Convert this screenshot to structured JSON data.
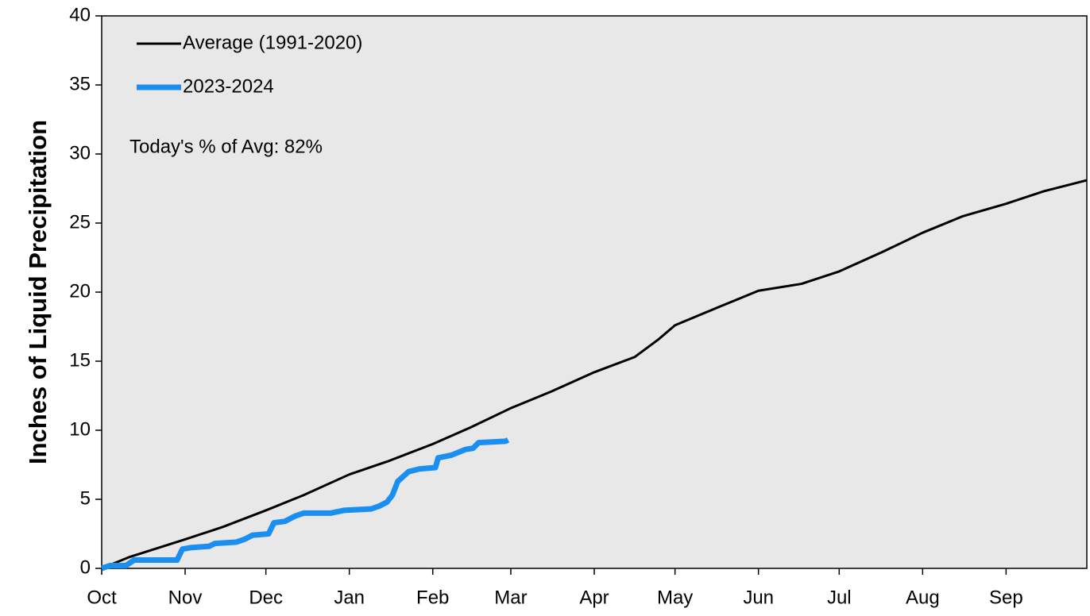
{
  "chart_data": {
    "type": "line",
    "y_label": "Inches of Liquid Precipitation",
    "annotation": "Today's % of Avg: 82%",
    "xlim": [
      0,
      366
    ],
    "xticks": [
      {
        "value": 0,
        "label": "Oct"
      },
      {
        "value": 31,
        "label": "Nov"
      },
      {
        "value": 61,
        "label": "Dec"
      },
      {
        "value": 92,
        "label": "Jan"
      },
      {
        "value": 123,
        "label": "Feb"
      },
      {
        "value": 152,
        "label": "Mar"
      },
      {
        "value": 183,
        "label": "Apr"
      },
      {
        "value": 213,
        "label": "May"
      },
      {
        "value": 244,
        "label": "Jun"
      },
      {
        "value": 274,
        "label": "Jul"
      },
      {
        "value": 305,
        "label": "Aug"
      },
      {
        "value": 336,
        "label": "Sep"
      }
    ],
    "ylim": [
      0,
      40
    ],
    "yticks": [
      0,
      5,
      10,
      15,
      20,
      25,
      30,
      35,
      40
    ],
    "grid": false,
    "series": [
      {
        "name": "Average (1991-2020)",
        "color": "#000000",
        "x": [
          0,
          10,
          31,
          45,
          61,
          75,
          92,
          107,
          123,
          137,
          152,
          167,
          183,
          198,
          207,
          213,
          229,
          244,
          260,
          274,
          290,
          305,
          320,
          336,
          350,
          366
        ],
        "values": [
          0,
          0.8,
          2.1,
          3.0,
          4.2,
          5.3,
          6.8,
          7.8,
          9.0,
          10.2,
          11.6,
          12.8,
          14.2,
          15.3,
          16.6,
          17.6,
          18.9,
          20.1,
          20.6,
          21.5,
          22.9,
          24.3,
          25.5,
          26.4,
          27.3,
          28.1
        ]
      },
      {
        "name": "2023-2024",
        "color": "#1a8ff0",
        "x": [
          0,
          3,
          9,
          12,
          28,
          30,
          33,
          40,
          42,
          50,
          53,
          56,
          62,
          64,
          68,
          72,
          75,
          85,
          90,
          100,
          103,
          106,
          108,
          110,
          114,
          118,
          124,
          125,
          130,
          135,
          138,
          140,
          150,
          151
        ],
        "values": [
          0,
          0.2,
          0.2,
          0.6,
          0.6,
          1.4,
          1.5,
          1.6,
          1.8,
          1.9,
          2.1,
          2.4,
          2.5,
          3.3,
          3.4,
          3.8,
          4.0,
          4.0,
          4.2,
          4.3,
          4.5,
          4.8,
          5.3,
          6.3,
          7.0,
          7.2,
          7.3,
          8.0,
          8.2,
          8.6,
          8.7,
          9.1,
          9.2,
          9.3
        ]
      }
    ]
  }
}
